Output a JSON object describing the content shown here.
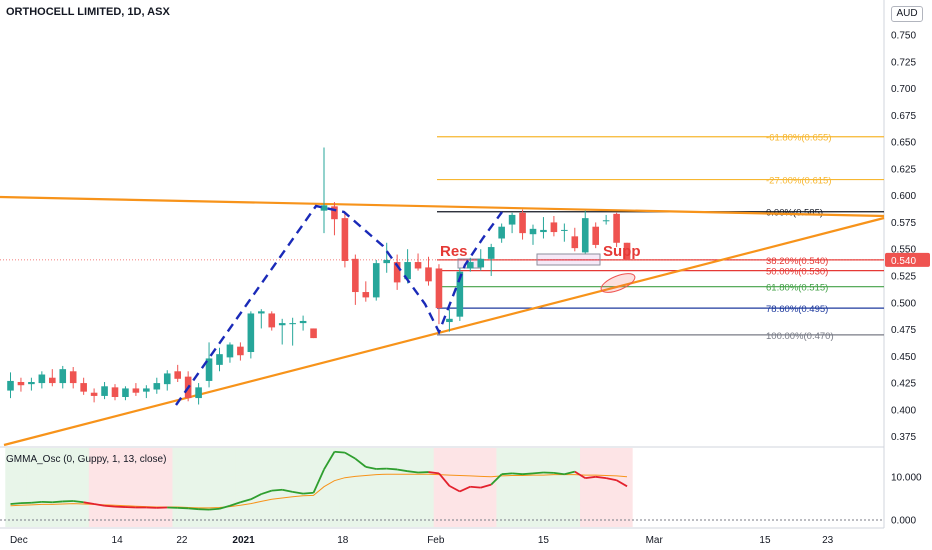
{
  "header": {
    "symbol_title": "ORTHOCELL LIMITED, 1D, ASX",
    "currency": "AUD"
  },
  "colors": {
    "up": "#26a69a",
    "down": "#ef5350",
    "trendline": "#f7931a",
    "dashed_path": "#1a2ab8",
    "gmma_fast": "#2e9e2e",
    "gmma_slow": "#f7931a",
    "gmma_fast_bear": "#e3212d",
    "bull_bg": "#e8f5e9",
    "bear_bg": "#fde4e6",
    "price_line": "#ef5350"
  },
  "chart_data": {
    "type": "candlestick",
    "title": "ORTHOCELL LIMITED, 1D, ASX",
    "y_axis": {
      "ticks": [
        "0.750",
        "0.725",
        "0.700",
        "0.675",
        "0.650",
        "0.625",
        "0.600",
        "0.575",
        "0.550",
        "0.525",
        "0.500",
        "0.475",
        "0.450",
        "0.425",
        "0.400",
        "0.375"
      ],
      "range": [
        0.362,
        0.767
      ],
      "last_price_label": "0.540"
    },
    "x_axis": {
      "ticks": [
        "Dec",
        "14",
        "22",
        "2021",
        "18",
        "Feb",
        "15",
        "Mar",
        "15",
        "23"
      ]
    },
    "candles": [
      {
        "o": 0.418,
        "h": 0.435,
        "l": 0.411,
        "c": 0.427
      },
      {
        "o": 0.426,
        "h": 0.43,
        "l": 0.417,
        "c": 0.423
      },
      {
        "o": 0.424,
        "h": 0.43,
        "l": 0.418,
        "c": 0.426
      },
      {
        "o": 0.425,
        "h": 0.436,
        "l": 0.42,
        "c": 0.433
      },
      {
        "o": 0.43,
        "h": 0.438,
        "l": 0.422,
        "c": 0.425
      },
      {
        "o": 0.425,
        "h": 0.441,
        "l": 0.42,
        "c": 0.438
      },
      {
        "o": 0.436,
        "h": 0.44,
        "l": 0.42,
        "c": 0.425
      },
      {
        "o": 0.425,
        "h": 0.43,
        "l": 0.414,
        "c": 0.417
      },
      {
        "o": 0.416,
        "h": 0.42,
        "l": 0.407,
        "c": 0.413
      },
      {
        "o": 0.413,
        "h": 0.426,
        "l": 0.41,
        "c": 0.422
      },
      {
        "o": 0.421,
        "h": 0.424,
        "l": 0.409,
        "c": 0.412
      },
      {
        "o": 0.412,
        "h": 0.422,
        "l": 0.409,
        "c": 0.42
      },
      {
        "o": 0.42,
        "h": 0.425,
        "l": 0.413,
        "c": 0.416
      },
      {
        "o": 0.417,
        "h": 0.423,
        "l": 0.411,
        "c": 0.42
      },
      {
        "o": 0.419,
        "h": 0.43,
        "l": 0.415,
        "c": 0.425
      },
      {
        "o": 0.424,
        "h": 0.437,
        "l": 0.418,
        "c": 0.434
      },
      {
        "o": 0.436,
        "h": 0.442,
        "l": 0.426,
        "c": 0.429
      },
      {
        "o": 0.431,
        "h": 0.436,
        "l": 0.408,
        "c": 0.411
      },
      {
        "o": 0.411,
        "h": 0.425,
        "l": 0.405,
        "c": 0.421
      },
      {
        "o": 0.427,
        "h": 0.463,
        "l": 0.421,
        "c": 0.448
      },
      {
        "o": 0.442,
        "h": 0.458,
        "l": 0.436,
        "c": 0.452
      },
      {
        "o": 0.449,
        "h": 0.463,
        "l": 0.444,
        "c": 0.461
      },
      {
        "o": 0.459,
        "h": 0.463,
        "l": 0.446,
        "c": 0.451
      },
      {
        "o": 0.454,
        "h": 0.492,
        "l": 0.448,
        "c": 0.49
      },
      {
        "o": 0.49,
        "h": 0.494,
        "l": 0.476,
        "c": 0.492
      },
      {
        "o": 0.49,
        "h": 0.492,
        "l": 0.474,
        "c": 0.477
      },
      {
        "o": 0.479,
        "h": 0.485,
        "l": 0.461,
        "c": 0.481
      },
      {
        "o": 0.48,
        "h": 0.486,
        "l": 0.46,
        "c": 0.481
      },
      {
        "o": 0.481,
        "h": 0.488,
        "l": 0.474,
        "c": 0.483
      },
      {
        "o": 0.476,
        "h": 0.476,
        "l": 0.467,
        "c": 0.467
      },
      {
        "o": 0.586,
        "h": 0.645,
        "l": 0.565,
        "c": 0.591
      },
      {
        "o": 0.59,
        "h": 0.594,
        "l": 0.563,
        "c": 0.578
      },
      {
        "o": 0.579,
        "h": 0.583,
        "l": 0.533,
        "c": 0.539
      },
      {
        "o": 0.541,
        "h": 0.545,
        "l": 0.498,
        "c": 0.51
      },
      {
        "o": 0.51,
        "h": 0.52,
        "l": 0.501,
        "c": 0.505
      },
      {
        "o": 0.505,
        "h": 0.54,
        "l": 0.502,
        "c": 0.537
      },
      {
        "o": 0.537,
        "h": 0.556,
        "l": 0.528,
        "c": 0.54
      },
      {
        "o": 0.538,
        "h": 0.545,
        "l": 0.512,
        "c": 0.519
      },
      {
        "o": 0.522,
        "h": 0.55,
        "l": 0.518,
        "c": 0.538
      },
      {
        "o": 0.538,
        "h": 0.546,
        "l": 0.53,
        "c": 0.532
      },
      {
        "o": 0.533,
        "h": 0.543,
        "l": 0.516,
        "c": 0.52
      },
      {
        "o": 0.532,
        "h": 0.536,
        "l": 0.48,
        "c": 0.495
      },
      {
        "o": 0.482,
        "h": 0.494,
        "l": 0.473,
        "c": 0.485
      },
      {
        "o": 0.487,
        "h": 0.532,
        "l": 0.483,
        "c": 0.529
      },
      {
        "o": 0.532,
        "h": 0.542,
        "l": 0.529,
        "c": 0.538
      },
      {
        "o": 0.533,
        "h": 0.55,
        "l": 0.53,
        "c": 0.541
      },
      {
        "o": 0.541,
        "h": 0.555,
        "l": 0.525,
        "c": 0.552
      },
      {
        "o": 0.56,
        "h": 0.574,
        "l": 0.556,
        "c": 0.571
      },
      {
        "o": 0.573,
        "h": 0.584,
        "l": 0.565,
        "c": 0.582
      },
      {
        "o": 0.584,
        "h": 0.587,
        "l": 0.559,
        "c": 0.565
      },
      {
        "o": 0.564,
        "h": 0.573,
        "l": 0.554,
        "c": 0.569
      },
      {
        "o": 0.566,
        "h": 0.58,
        "l": 0.56,
        "c": 0.568
      },
      {
        "o": 0.575,
        "h": 0.581,
        "l": 0.562,
        "c": 0.566
      },
      {
        "o": 0.568,
        "h": 0.574,
        "l": 0.557,
        "c": 0.568
      },
      {
        "o": 0.562,
        "h": 0.57,
        "l": 0.548,
        "c": 0.551
      },
      {
        "o": 0.547,
        "h": 0.586,
        "l": 0.546,
        "c": 0.579
      },
      {
        "o": 0.571,
        "h": 0.575,
        "l": 0.551,
        "c": 0.554
      },
      {
        "o": 0.577,
        "h": 0.582,
        "l": 0.573,
        "c": 0.577
      },
      {
        "o": 0.583,
        "h": 0.584,
        "l": 0.552,
        "c": 0.556
      },
      {
        "o": 0.556,
        "h": 0.556,
        "l": 0.54,
        "c": 0.54
      }
    ],
    "fibonacci": [
      {
        "label": "-61.80%(0.655)",
        "value": 0.655,
        "color": "#f7b731"
      },
      {
        "label": "-27.00%(0.615)",
        "value": 0.615,
        "color": "#f7b731"
      },
      {
        "label": "0.00%(0.585)",
        "value": 0.585,
        "color": "#131722"
      },
      {
        "label": "38.20%(0.540)",
        "value": 0.54,
        "color": "#e53935"
      },
      {
        "label": "50.00%(0.530)",
        "value": 0.53,
        "color": "#e53935"
      },
      {
        "label": "61.80%(0.515)",
        "value": 0.515,
        "color": "#43a047"
      },
      {
        "label": "78.60%(0.495)",
        "value": 0.495,
        "color": "#1e3a9e"
      },
      {
        "label": "100.00%(0.470)",
        "value": 0.47,
        "color": "#787b86"
      }
    ],
    "annotations": {
      "res_label": "Res",
      "supp_label": "Supp"
    },
    "oscillator": {
      "title": "GMMA_Osc (0, Guppy, 1, 13, close)",
      "y_ticks": [
        "10.000",
        "0.000"
      ],
      "fast": [
        3.7,
        3.9,
        4.0,
        4.2,
        4.1,
        4.3,
        4.4,
        4.1,
        3.7,
        3.3,
        3.1,
        3.0,
        2.9,
        2.9,
        2.8,
        2.9,
        2.8,
        2.7,
        2.5,
        2.4,
        2.6,
        3.3,
        4.1,
        4.8,
        6.0,
        6.8,
        7.0,
        6.5,
        6.1,
        6.3,
        11.7,
        15.8,
        15.6,
        14.2,
        12.3,
        11.8,
        11.9,
        11.7,
        11.3,
        11.0,
        11.1,
        10.8,
        7.9,
        6.6,
        7.7,
        7.5,
        8.2,
        10.6,
        10.8,
        10.6,
        10.8,
        11.0,
        10.9,
        10.6,
        11.2,
        9.7,
        10.0,
        9.7,
        9.2,
        7.8
      ],
      "slow": [
        3.3,
        3.4,
        3.5,
        3.6,
        3.6,
        3.7,
        3.8,
        3.7,
        3.6,
        3.5,
        3.4,
        3.3,
        3.2,
        3.1,
        3.0,
        3.0,
        3.0,
        2.9,
        2.8,
        2.8,
        2.9,
        3.1,
        3.4,
        3.8,
        4.3,
        4.8,
        5.1,
        5.4,
        5.6,
        5.7,
        7.7,
        9.1,
        9.8,
        10.1,
        10.3,
        10.5,
        10.6,
        10.6,
        10.6,
        10.6,
        10.6,
        10.5,
        10.4,
        10.3,
        10.2,
        10.1,
        10.0,
        10.2,
        10.3,
        10.3,
        10.4,
        10.4,
        10.5,
        10.5,
        10.5,
        10.4,
        10.4,
        10.3,
        10.2,
        10.0
      ],
      "bear_ranges": [
        [
          8,
          15
        ],
        [
          41,
          46
        ],
        [
          55,
          59
        ]
      ]
    }
  }
}
